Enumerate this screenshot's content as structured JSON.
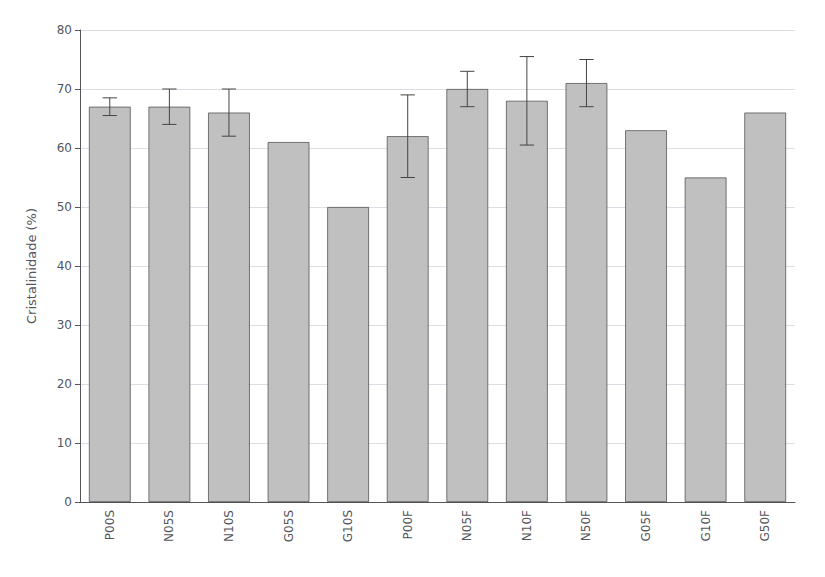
{
  "chart_data": {
    "type": "bar",
    "ylabel": "Cristalinidade (%)",
    "categories": [
      "P00S",
      "N05S",
      "N10S",
      "G05S",
      "G10S",
      "P00F",
      "N05F",
      "N10F",
      "N50F",
      "G05F",
      "G10F",
      "G50F"
    ],
    "values": [
      67,
      67,
      66,
      61,
      50,
      62,
      70,
      68,
      71,
      63,
      55,
      66
    ],
    "errors": [
      1.5,
      3.0,
      4.0,
      0,
      0,
      7.0,
      3.0,
      7.5,
      4.0,
      0,
      0,
      0
    ],
    "color": "#c0c0c0",
    "ylim": [
      0,
      80
    ],
    "yticks": [
      0,
      10,
      20,
      30,
      40,
      50,
      60,
      70,
      80
    ],
    "grid": true
  }
}
